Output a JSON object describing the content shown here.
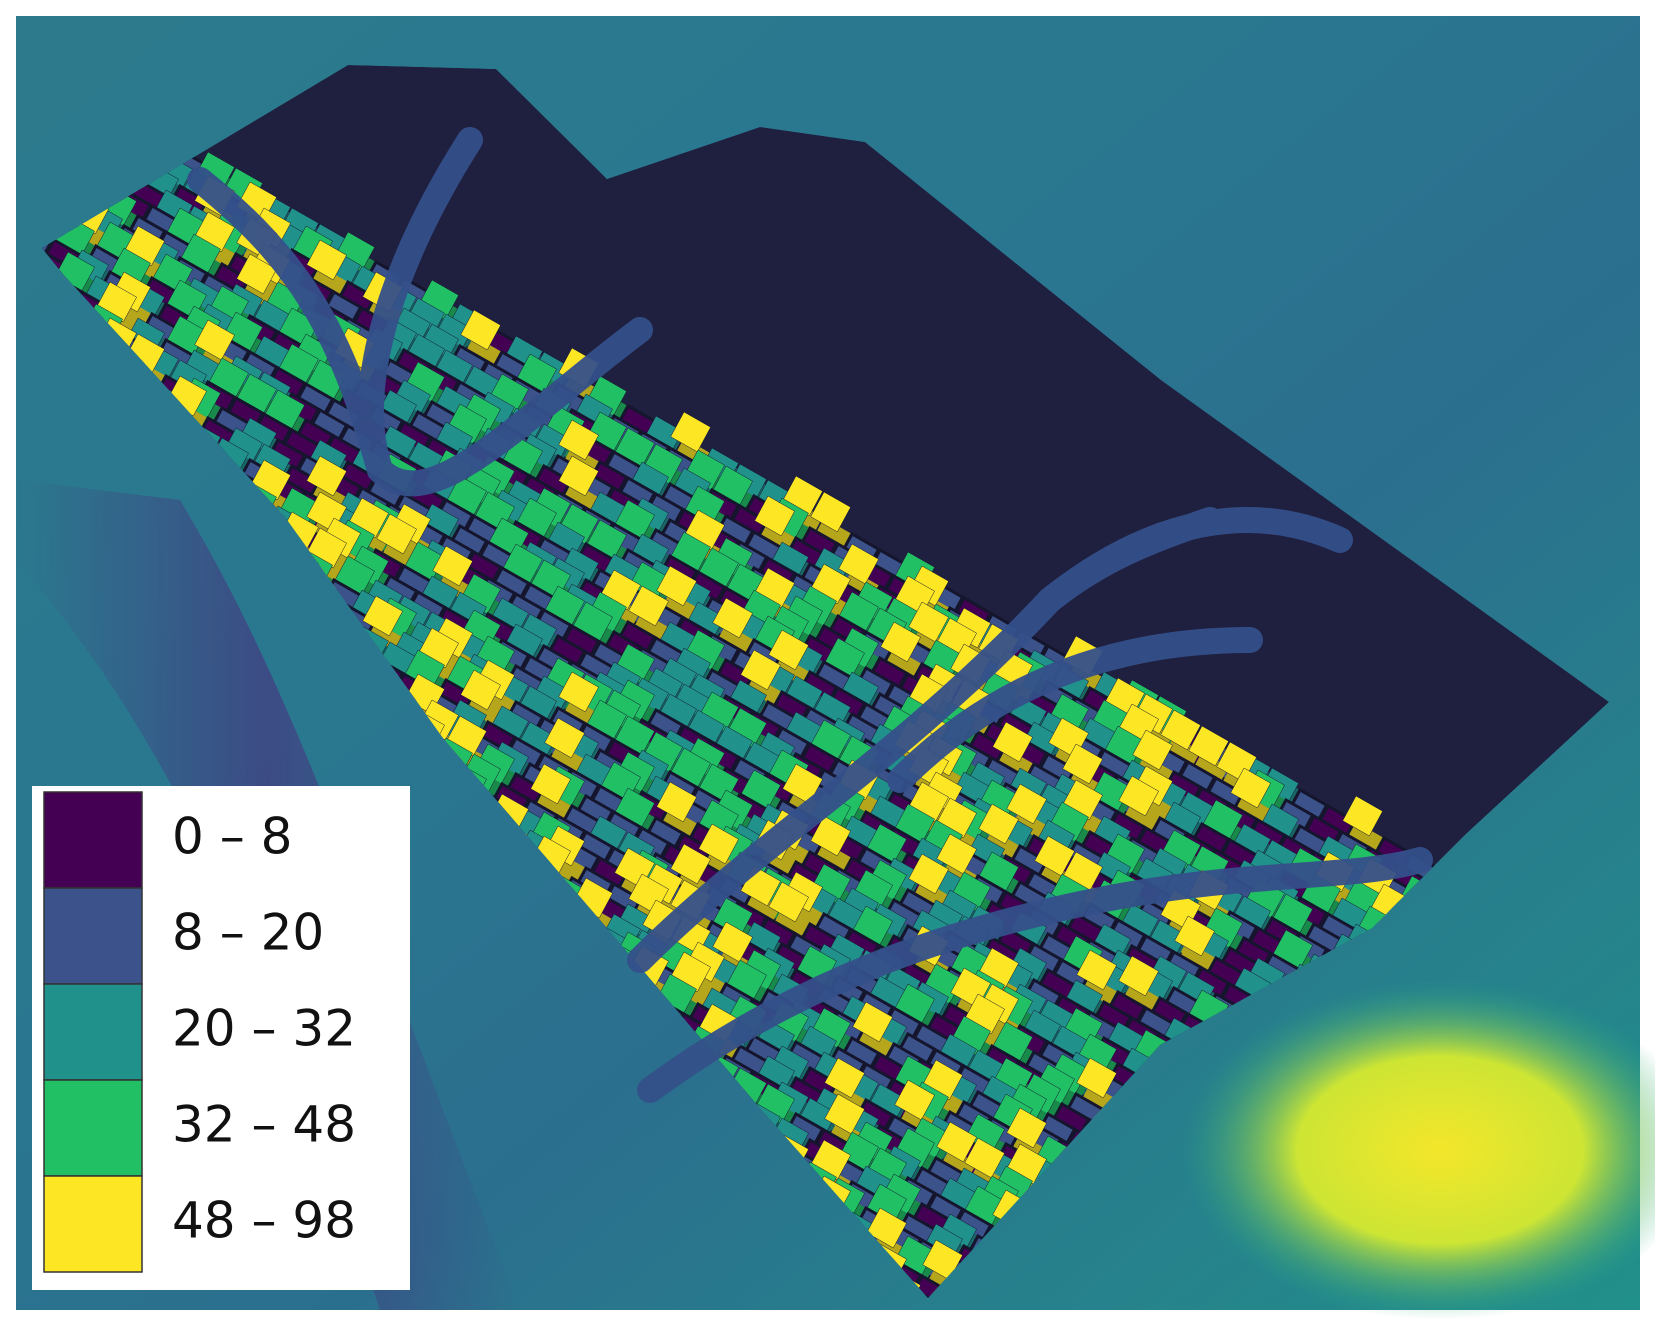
{
  "legend": {
    "items": [
      {
        "label": "0 – 8",
        "color": "#440154"
      },
      {
        "label": "8 – 20",
        "color": "#3b528b"
      },
      {
        "label": "20 – 32",
        "color": "#21918c"
      },
      {
        "label": "32 – 48",
        "color": "#22c065"
      },
      {
        "label": "48 – 98",
        "color": "#fde725"
      }
    ]
  }
}
